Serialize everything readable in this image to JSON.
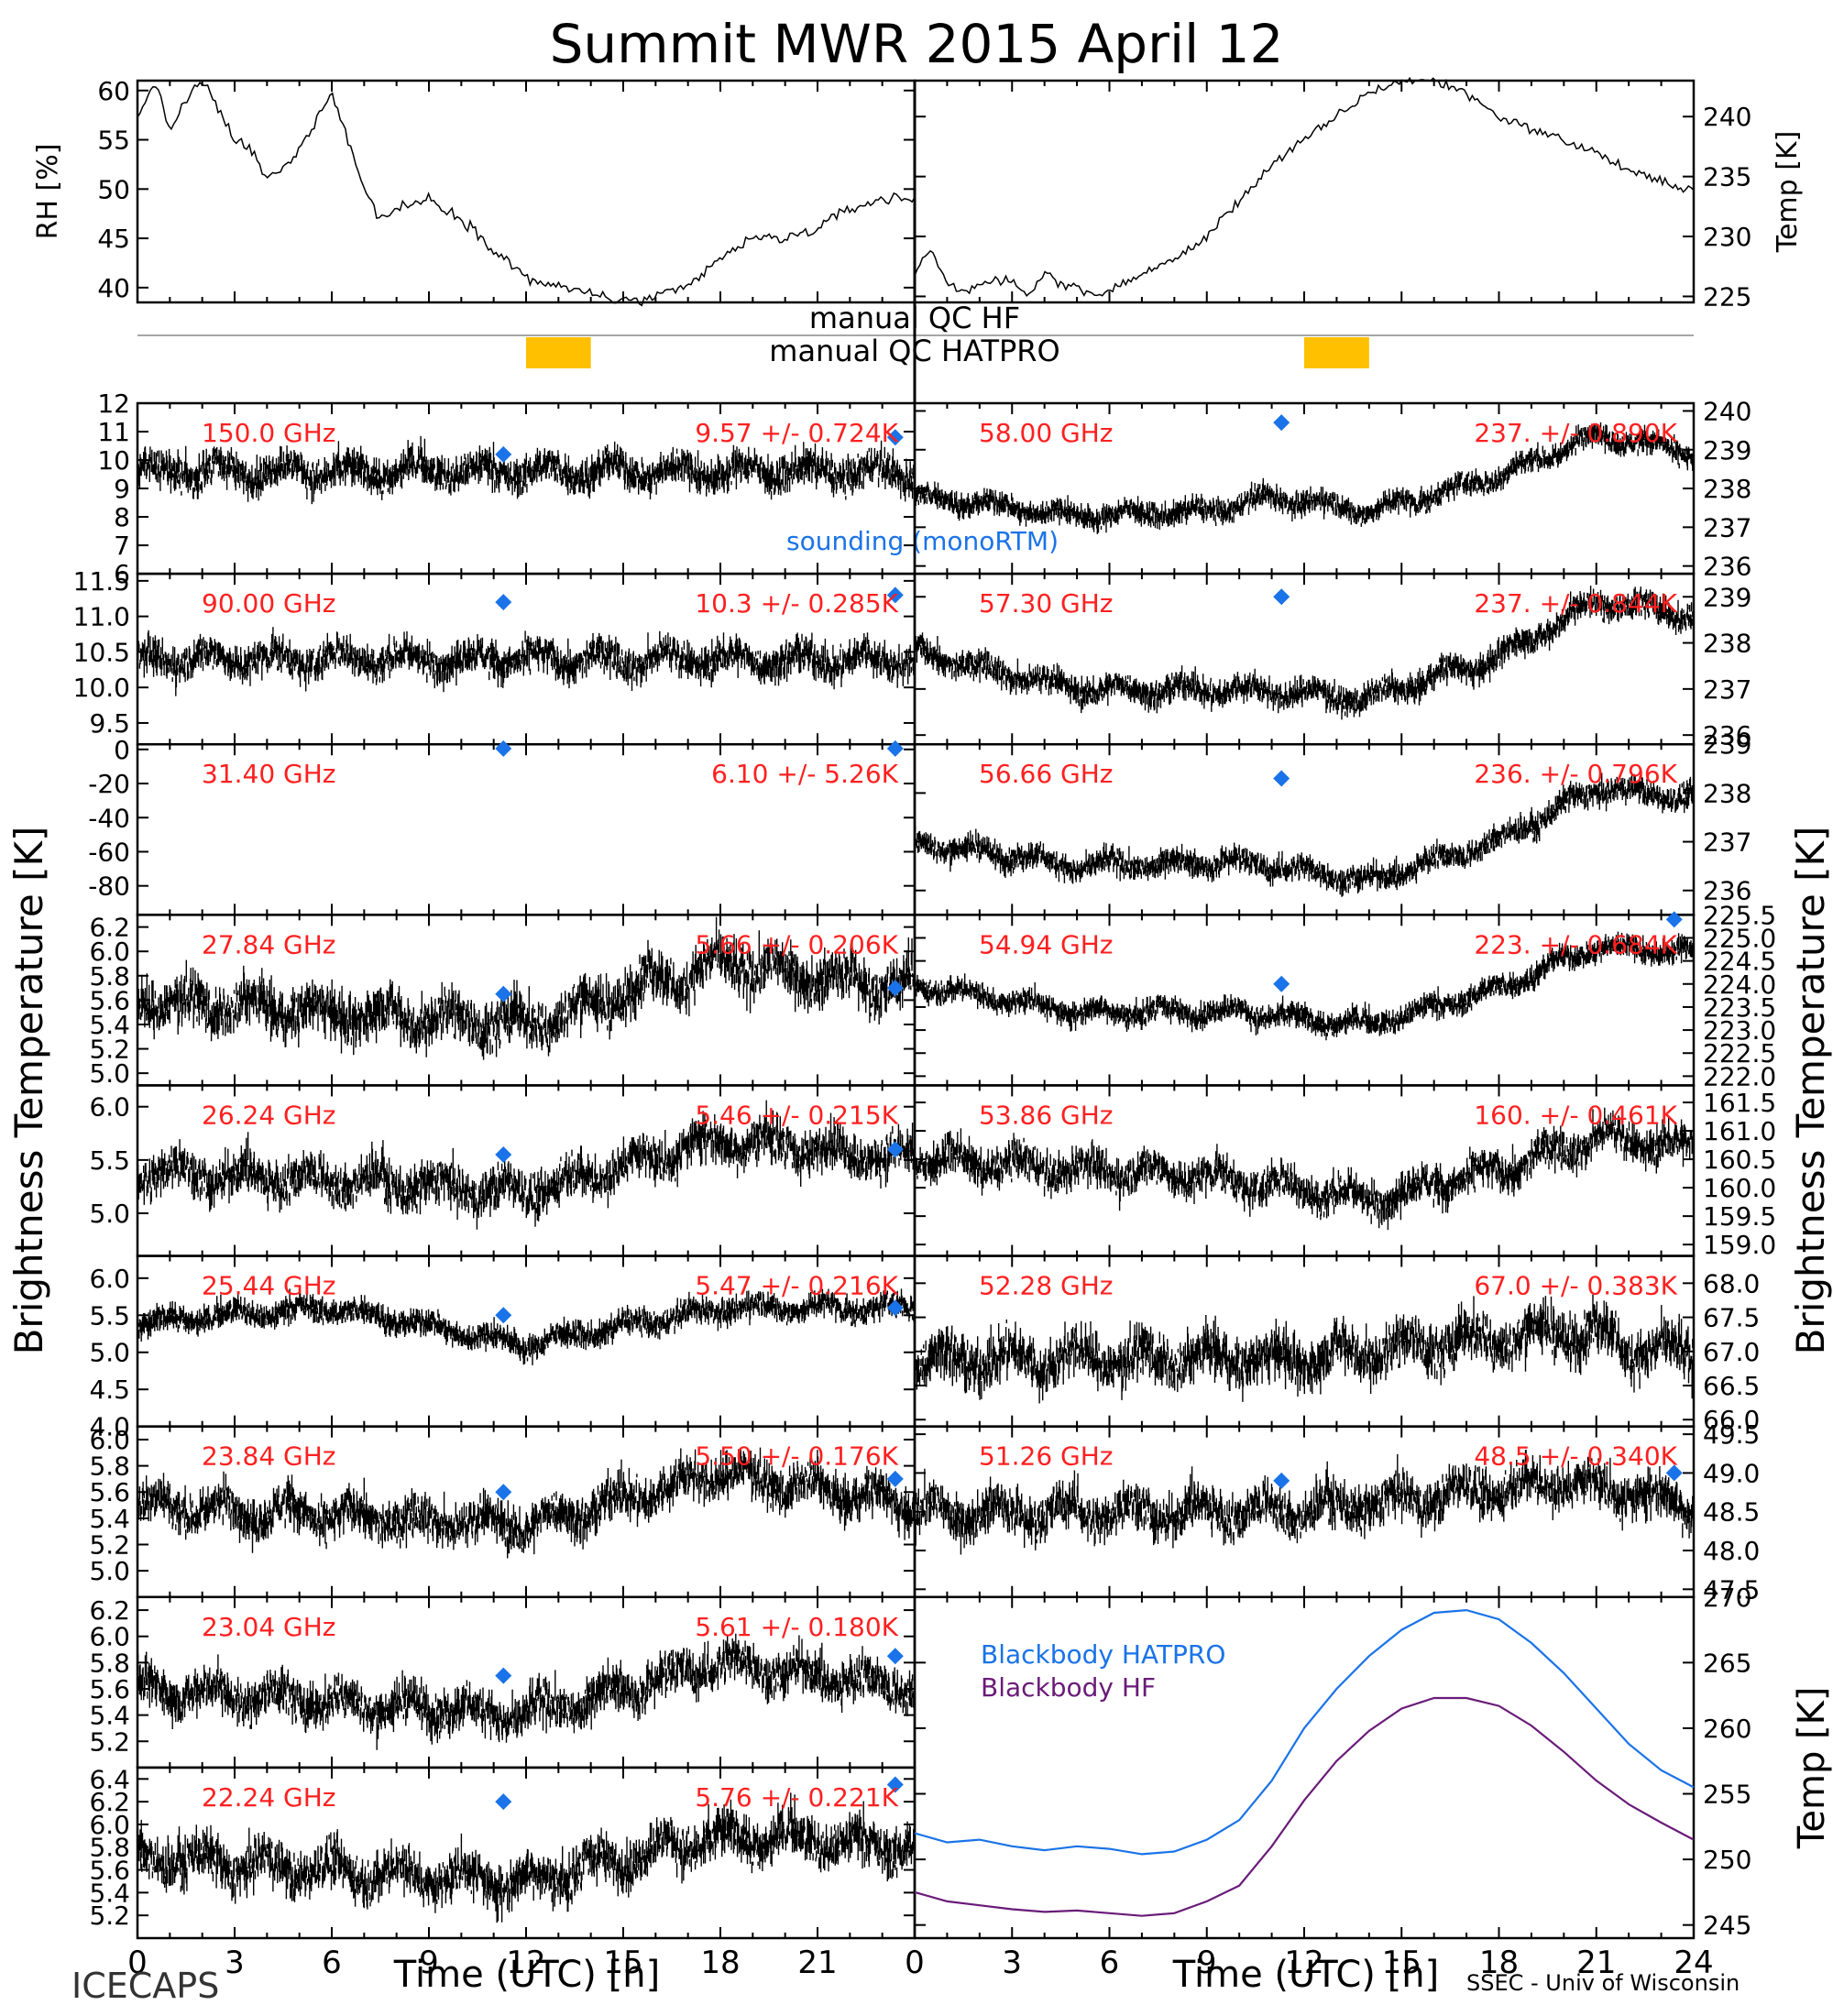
{
  "title": "Summit MWR 2015 April 12",
  "footer_left": "ICECAPS",
  "footer_right": "SSEC - Univ of Wisconsin",
  "xlabel": "Time (UTC) [h]",
  "ylabel_left": "Brightness Temperature [K]",
  "ylabel_right": "Brightness Temperature [K]",
  "qc": {
    "hf_label": "manual QC HF",
    "hatpro_label": "manual QC HATPRO",
    "hf_flag_hours": [
      12.0,
      14.0
    ],
    "hatpro_flag_hours": [
      12.0,
      14.0
    ],
    "flag_color": "#ffc000"
  },
  "colors": {
    "data": "#000000",
    "channel_label": "#ff2020",
    "sounding": "#1a73e8",
    "bb_hatpro": "#1a73e8",
    "bb_hf": "#6a1b78"
  },
  "sounding_legend": "sounding (monoRTM)",
  "chart_data": [
    {
      "type": "line",
      "name": "RH",
      "ylabel": "RH [%]",
      "xlim": [
        0,
        24
      ],
      "ylim": [
        38.5,
        61
      ],
      "yticks": [
        "40",
        "45",
        "50",
        "55",
        "60"
      ],
      "x": [
        0,
        0.5,
        1,
        1.5,
        2,
        2.5,
        3,
        3.5,
        4,
        4.5,
        5,
        5.5,
        6,
        6.5,
        7,
        7.5,
        8,
        9,
        10,
        11,
        12,
        13,
        14,
        15,
        16,
        17,
        18,
        19,
        20,
        21,
        22,
        23,
        24
      ],
      "y": [
        57,
        61,
        56,
        59,
        61,
        58,
        55,
        54,
        51,
        52,
        54,
        57,
        60,
        55,
        50,
        47,
        48,
        49,
        47,
        44,
        41,
        40,
        39.5,
        38.5,
        39,
        40,
        43,
        45,
        45,
        46,
        48,
        49,
        49
      ]
    },
    {
      "type": "line",
      "name": "Temp",
      "ylabel": "Temp [K]",
      "xlim": [
        0,
        24
      ],
      "ylim": [
        224.5,
        243
      ],
      "yticks": [
        "225",
        "230",
        "235",
        "240"
      ],
      "x": [
        0,
        0.5,
        1,
        1.5,
        2,
        2.5,
        3,
        3.5,
        4,
        4.5,
        5,
        5.5,
        6,
        6.5,
        7,
        7.5,
        8,
        9,
        10,
        11,
        12,
        13,
        14,
        15,
        16,
        17,
        18,
        19,
        20,
        21,
        22,
        23,
        24
      ],
      "y": [
        227,
        229,
        226,
        225.5,
        226,
        226.5,
        226,
        225,
        227,
        226,
        226,
        225,
        225.5,
        226,
        227,
        227.5,
        228,
        230,
        233,
        236,
        238,
        240,
        242,
        243,
        243,
        242,
        240,
        239,
        238,
        237,
        235.5,
        234.5,
        234
      ]
    },
    {
      "type": "scatter",
      "channel": "150.0 GHz",
      "stat": "9.57 +/- 0.724K",
      "ylim": [
        6,
        12
      ],
      "yticks": [
        "6",
        "7",
        "8",
        "9",
        "10",
        "11",
        "12"
      ],
      "baseline": [
        [
          0,
          9.6
        ],
        [
          24,
          9.6
        ]
      ],
      "noise": 0.75,
      "sounding": [
        [
          11.3,
          10.2
        ],
        [
          23.4,
          10.8
        ]
      ]
    },
    {
      "type": "scatter",
      "channel": "90.00 GHz",
      "stat": "10.3 +/- 0.285K",
      "ylim": [
        9.2,
        11.6
      ],
      "yticks": [
        "9.5",
        "10.0",
        "10.5",
        "11.0",
        "11.5"
      ],
      "baseline": [
        [
          0,
          10.4
        ],
        [
          24,
          10.4
        ]
      ],
      "noise": 0.3,
      "sounding": [
        [
          11.3,
          11.2
        ],
        [
          23.4,
          11.3
        ]
      ]
    },
    {
      "type": "scatter",
      "channel": "31.40 GHz",
      "stat": "6.10 +/- 5.26K",
      "ylim": [
        -97,
        3
      ],
      "yticks": [
        "-80",
        "-60",
        "-40",
        "-20",
        "0"
      ],
      "baseline": [],
      "noise": 0,
      "sounding": [
        [
          11.3,
          0.5
        ],
        [
          23.4,
          0.5
        ]
      ]
    },
    {
      "type": "scatter",
      "channel": "27.84 GHz",
      "stat": "5.66 +/- 0.206K",
      "ylim": [
        4.9,
        6.3
      ],
      "yticks": [
        "5.0",
        "5.2",
        "5.4",
        "5.6",
        "5.8",
        "6.0",
        "6.2"
      ],
      "baseline": [
        [
          0,
          5.6
        ],
        [
          12,
          5.4
        ],
        [
          18,
          5.9
        ],
        [
          24,
          5.7
        ]
      ],
      "noise": 0.25,
      "sounding": [
        [
          11.3,
          5.65
        ],
        [
          23.4,
          5.7
        ]
      ]
    },
    {
      "type": "scatter",
      "channel": "26.24 GHz",
      "stat": "5.46 +/- 0.215K",
      "ylim": [
        4.6,
        6.2
      ],
      "yticks": [
        "5.0",
        "5.5",
        "6.0"
      ],
      "baseline": [
        [
          0,
          5.4
        ],
        [
          12,
          5.2
        ],
        [
          18,
          5.7
        ],
        [
          24,
          5.5
        ]
      ],
      "noise": 0.25,
      "sounding": [
        [
          11.3,
          5.55
        ],
        [
          23.4,
          5.6
        ]
      ]
    },
    {
      "type": "scatter",
      "channel": "25.44 GHz",
      "stat": "5.47 +/- 0.216K",
      "ylim": [
        4.0,
        6.3
      ],
      "yticks": [
        "4.0",
        "4.5",
        "5.0",
        "5.5",
        "6.0"
      ],
      "baseline": [
        [
          0,
          5.4
        ],
        [
          6,
          5.6
        ],
        [
          12,
          5.1
        ],
        [
          18,
          5.6
        ],
        [
          24,
          5.6
        ]
      ],
      "noise": 0.2,
      "sounding": [
        [
          11.3,
          5.5
        ],
        [
          23.4,
          5.6
        ]
      ]
    },
    {
      "type": "scatter",
      "channel": "23.84 GHz",
      "stat": "5.50 +/- 0.176K",
      "ylim": [
        4.8,
        6.1
      ],
      "yticks": [
        "5.0",
        "5.2",
        "5.4",
        "5.6",
        "5.8",
        "6.0"
      ],
      "baseline": [
        [
          0,
          5.5
        ],
        [
          12,
          5.35
        ],
        [
          18,
          5.75
        ],
        [
          24,
          5.5
        ]
      ],
      "noise": 0.2,
      "sounding": [
        [
          11.3,
          5.6
        ],
        [
          23.4,
          5.7
        ]
      ]
    },
    {
      "type": "scatter",
      "channel": "23.04 GHz",
      "stat": "5.61 +/- 0.180K",
      "ylim": [
        5.0,
        6.3
      ],
      "yticks": [
        "5.2",
        "5.4",
        "5.6",
        "5.8",
        "6.0",
        "6.2"
      ],
      "baseline": [
        [
          0,
          5.6
        ],
        [
          12,
          5.4
        ],
        [
          18,
          5.8
        ],
        [
          24,
          5.6
        ]
      ],
      "noise": 0.2,
      "sounding": [
        [
          11.3,
          5.7
        ],
        [
          23.4,
          5.85
        ]
      ]
    },
    {
      "type": "scatter",
      "channel": "22.24 GHz",
      "stat": "5.76 +/- 0.221K",
      "ylim": [
        5.0,
        6.5
      ],
      "yticks": [
        "5.2",
        "5.4",
        "5.6",
        "5.8",
        "6.0",
        "6.2",
        "6.4"
      ],
      "baseline": [
        [
          0,
          5.7
        ],
        [
          12,
          5.5
        ],
        [
          18,
          5.9
        ],
        [
          24,
          5.8
        ]
      ],
      "noise": 0.25,
      "sounding": [
        [
          11.3,
          6.2
        ],
        [
          23.4,
          6.35
        ]
      ]
    },
    {
      "type": "scatter",
      "channel": "58.00 GHz",
      "stat": "237. +/- 0.890K",
      "ylim": [
        235.8,
        240.2
      ],
      "yticks": [
        "236",
        "237",
        "238",
        "239",
        "240"
      ],
      "baseline": [
        [
          0,
          237.8
        ],
        [
          5,
          237.3
        ],
        [
          9,
          237.4
        ],
        [
          11,
          237.8
        ],
        [
          14,
          237.4
        ],
        [
          18,
          238.3
        ],
        [
          21,
          239.4
        ],
        [
          24,
          238.9
        ]
      ],
      "noise": 0.35,
      "sounding": [
        [
          11.3,
          239.7
        ]
      ]
    },
    {
      "type": "scatter",
      "channel": "57.30 GHz",
      "stat": "237. +/- 0.844K",
      "ylim": [
        235.8,
        239.5
      ],
      "yticks": [
        "236",
        "237",
        "238",
        "239"
      ],
      "baseline": [
        [
          0,
          237.8
        ],
        [
          5,
          237.0
        ],
        [
          10,
          237.0
        ],
        [
          14,
          236.8
        ],
        [
          18,
          237.7
        ],
        [
          21,
          238.9
        ],
        [
          24,
          238.6
        ]
      ],
      "noise": 0.35,
      "sounding": [
        [
          11.3,
          239.0
        ]
      ]
    },
    {
      "type": "scatter",
      "channel": "56.66 GHz",
      "stat": "236. +/- 0.796K",
      "ylim": [
        235.5,
        239.0
      ],
      "yticks": [
        "236",
        "237",
        "238",
        "239"
      ],
      "baseline": [
        [
          0,
          237.0
        ],
        [
          5,
          236.5
        ],
        [
          10,
          236.6
        ],
        [
          14,
          236.2
        ],
        [
          18,
          237.0
        ],
        [
          21,
          238.1
        ],
        [
          24,
          237.9
        ]
      ],
      "noise": 0.3,
      "sounding": [
        [
          11.3,
          238.3
        ]
      ]
    },
    {
      "type": "scatter",
      "channel": "54.94 GHz",
      "stat": "223. +/- 0.684K",
      "ylim": [
        221.8,
        225.5
      ],
      "yticks": [
        "222.0",
        "222.5",
        "223.0",
        "223.5",
        "224.0",
        "224.5",
        "225.0",
        "225.5"
      ],
      "baseline": [
        [
          0,
          224.0
        ],
        [
          5,
          223.4
        ],
        [
          10,
          223.4
        ],
        [
          14,
          223.1
        ],
        [
          18,
          223.9
        ],
        [
          21,
          224.8
        ],
        [
          24,
          224.7
        ]
      ],
      "noise": 0.3,
      "sounding": [
        [
          11.3,
          224.0
        ],
        [
          23.4,
          225.4
        ]
      ]
    },
    {
      "type": "scatter",
      "channel": "53.86 GHz",
      "stat": "160. +/- 0.461K",
      "ylim": [
        158.8,
        161.8
      ],
      "yticks": [
        "159.0",
        "159.5",
        "160.0",
        "160.5",
        "161.0",
        "161.5"
      ],
      "baseline": [
        [
          0,
          160.5
        ],
        [
          9,
          160.2
        ],
        [
          14,
          159.8
        ],
        [
          18,
          160.3
        ],
        [
          21,
          160.9
        ],
        [
          24,
          160.7
        ]
      ],
      "noise": 0.4,
      "sounding": []
    },
    {
      "type": "scatter",
      "channel": "52.28 GHz",
      "stat": "67.0 +/- 0.383K",
      "ylim": [
        65.9,
        68.4
      ],
      "yticks": [
        "66.0",
        "66.5",
        "67.0",
        "67.5",
        "68.0"
      ],
      "baseline": [
        [
          0,
          66.9
        ],
        [
          12,
          66.9
        ],
        [
          20,
          67.3
        ],
        [
          24,
          66.9
        ]
      ],
      "noise": 0.45,
      "sounding": []
    },
    {
      "type": "scatter",
      "channel": "51.26 GHz",
      "stat": "48.5 +/- 0.340K",
      "ylim": [
        47.4,
        49.6
      ],
      "yticks": [
        "47.5",
        "48.0",
        "48.5",
        "49.0",
        "49.5"
      ],
      "baseline": [
        [
          0,
          48.5
        ],
        [
          12,
          48.5
        ],
        [
          20,
          48.9
        ],
        [
          24,
          48.6
        ]
      ],
      "noise": 0.35,
      "sounding": [
        [
          11.3,
          48.9
        ],
        [
          23.4,
          49.0
        ]
      ]
    },
    {
      "type": "line",
      "name": "Blackbody",
      "ylabel": "Temp [K]",
      "xlim": [
        0,
        24
      ],
      "ylim": [
        244,
        270
      ],
      "yticks": [
        "245",
        "250",
        "255",
        "260",
        "265",
        "270"
      ],
      "series": [
        {
          "name": "Blackbody HATPRO",
          "x": [
            0,
            1,
            2,
            3,
            4,
            5,
            6,
            7,
            8,
            9,
            10,
            11,
            12,
            13,
            14,
            15,
            16,
            17,
            18,
            19,
            20,
            21,
            22,
            23,
            24
          ],
          "y": [
            252,
            251.3,
            251.5,
            251,
            250.7,
            251,
            250.8,
            250.4,
            250.6,
            251.5,
            253,
            256,
            260,
            263,
            265.5,
            267.5,
            268.8,
            269,
            268.3,
            266.5,
            264.2,
            261.5,
            258.8,
            256.8,
            255.5
          ]
        },
        {
          "name": "Blackbody HF",
          "x": [
            0,
            1,
            2,
            3,
            4,
            5,
            6,
            7,
            8,
            9,
            10,
            11,
            12,
            13,
            14,
            15,
            16,
            17,
            18,
            19,
            20,
            21,
            22,
            23,
            24
          ],
          "y": [
            247.5,
            246.8,
            246.5,
            246.2,
            246,
            246.1,
            245.9,
            245.7,
            245.9,
            246.8,
            248,
            251,
            254.5,
            257.5,
            259.8,
            261.5,
            262.3,
            262.3,
            261.7,
            260.2,
            258.2,
            256,
            254.2,
            252.8,
            251.5
          ]
        }
      ]
    }
  ]
}
